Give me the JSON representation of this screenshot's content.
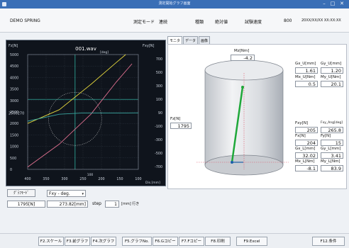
{
  "window": {
    "title": "測定開始グラフ画面",
    "min": "–",
    "max": "□",
    "close": "✕"
  },
  "header": {
    "project": "DEMO SPRING",
    "mode_label": "測定モード",
    "mode_value": "連続",
    "type_label": "種類",
    "type_value": "絶対値",
    "speed_label": "試験速度",
    "speed_value": "800",
    "datetime": "20XX/XX/XX XX:XX:XX"
  },
  "chart_data": {
    "type": "line",
    "title": "001.wav",
    "x_label": "Dis.[mm]",
    "x_unit_top": "[deg]",
    "left_axis_label": "Fz[N]",
    "right_axis_label": "Fxy[N]",
    "xlim": [
      400,
      50
    ],
    "left_ylim": [
      0,
      5000
    ],
    "right_ylim": [
      -700,
      700
    ],
    "x_ticks": [
      "400",
      "350",
      "300",
      "250",
      "200",
      "150",
      "100"
    ],
    "x_tick_extra": "100",
    "left_ticks": [
      "5000",
      "4500",
      "4000",
      "3500",
      "3000",
      "2500",
      "2000",
      "1500",
      "1000",
      "500",
      "0"
    ],
    "left_marker_label": "2500270",
    "right_ticks": [
      "700",
      "500",
      "300",
      "100",
      "90",
      "-100",
      "-300",
      "-500",
      "-700"
    ],
    "series": [
      {
        "color": "#e4d63c",
        "x": [
          400,
          300,
          200,
          120,
          90
        ],
        "y": [
          2000,
          2600,
          3700,
          4650,
          5000
        ]
      },
      {
        "color": "#e07090",
        "x": [
          400,
          300,
          200,
          120,
          70
        ],
        "y": [
          100,
          1100,
          2400,
          3800,
          4600
        ]
      },
      {
        "color": "#3aa6a0",
        "x": [
          400,
          300,
          230,
          120,
          50
        ],
        "y": [
          2100,
          2400,
          2450,
          2450,
          2460
        ]
      }
    ],
    "cross_x": 250,
    "cross_y": 3050,
    "circle_center": [
      250,
      2200
    ],
    "grid": true
  },
  "tabs": [
    "モニタ",
    "データ",
    "画像"
  ],
  "panel": {
    "mz_label": "Mz[Nm]",
    "mz_value": "-4.2",
    "fz_label": "Fz[N]",
    "fz_value": "1795",
    "gx_u_label": "Gx_U[mm]",
    "gx_u_value": "1.61",
    "gy_u_label": "Gy_U[mm]",
    "gy_u_value": "1.20",
    "mx_u_label": "Mx_U[Nm]",
    "mx_u_value": "0.5",
    "my_u_label": "My_U[Nm]",
    "my_u_value": "20.1",
    "fxy_label": "Fxy[N]",
    "fxy_value": "205",
    "fxy_ang_label": "Fxy_Ang[deg]",
    "fxy_ang_value": "265.8",
    "fx_label": "Fx[N]",
    "fx_value": "204",
    "fy_label": "Fy[N]",
    "fy_value": "15",
    "gx_l_label": "Gx_L[mm]",
    "gx_l_value": "32.02",
    "gy_l_label": "Gy_L[mm]",
    "gy_l_value": "3.41",
    "mx_l_label": "Mx_L[Nm]",
    "mx_l_value": "-8.1",
    "my_l_label": "My_L[Nm]",
    "my_l_value": "83.9"
  },
  "controls": {
    "graph_mode_button": "ｸﾞﾗﾌﾓｰﾄﾞ",
    "graph_select": "Fxy - deg.",
    "load_value": "1795[N]",
    "position_value": "273.82[mm]",
    "step_label": "step",
    "step_value": "1",
    "step_unit": "[mm]  行き"
  },
  "fkeys": [
    "F2.スケール",
    "F3.前グラフ",
    "F4.次グラフ",
    "F5.グラフNo.",
    "F6.Gコピー",
    "F7.Fコピー",
    "F8.印刷",
    "F9.Excel",
    "F12.条件"
  ]
}
